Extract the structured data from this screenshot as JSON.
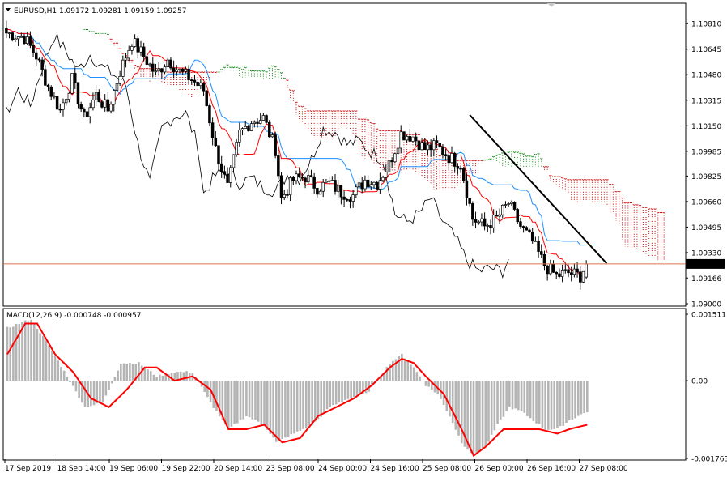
{
  "window": {
    "symbol_line": "EURUSD,H1  1.09172 1.09281 1.09159 1.09257",
    "macd_line": "MACD(12,26,9) -0.000748 -0.000957",
    "current_price_label": "1.09257"
  },
  "colors": {
    "background": "#ffffff",
    "candles": "#000000",
    "tenkan": "#ff0000",
    "kijun": "#1e90ff",
    "chikou": "#000000",
    "kumo_bear": "#cc0000",
    "kumo_bull": "#008000",
    "trendline": "#000000",
    "price_line": "#e07050",
    "macd_hist": "#b4b4b4",
    "macd_signal": "#ff0000",
    "grid_frame": "#000000"
  },
  "chart_data": [
    {
      "type": "candlestick",
      "panel": "price",
      "title": "EURUSD,H1",
      "indicators": [
        "Ichimoku Kinko Hyo",
        "trendline",
        "current price line"
      ],
      "ylim": [
        1.09,
        1.109
      ],
      "y_ticks": [
        "1.10810",
        "1.10645",
        "1.10480",
        "1.10315",
        "1.10150",
        "1.09985",
        "1.09825",
        "1.09660",
        "1.09495",
        "1.09330",
        "1.09166",
        "1.09000"
      ],
      "y_tick_values": [
        1.1081,
        1.10645,
        1.1048,
        1.10315,
        1.1015,
        1.09985,
        1.09825,
        1.0966,
        1.09495,
        1.0933,
        1.09166,
        1.09
      ],
      "current_price": 1.09257,
      "last_bar": {
        "open": 1.09172,
        "high": 1.09281,
        "low": 1.09159,
        "close": 1.09257
      },
      "x_labels": [
        "17 Sep 2019",
        "18 Sep 14:00",
        "19 Sep 06:00",
        "19 Sep 22:00",
        "20 Sep 14:00",
        "23 Sep 08:00",
        "24 Sep 00:00",
        "24 Sep 16:00",
        "25 Sep 08:00",
        "26 Sep 00:00",
        "26 Sep 16:00",
        "27 Sep 08:00"
      ],
      "close_path": [
        [
          0,
          1.1075
        ],
        [
          6,
          1.1072
        ],
        [
          10,
          1.106
        ],
        [
          14,
          1.104
        ],
        [
          18,
          1.1025
        ],
        [
          22,
          1.1045
        ],
        [
          26,
          1.102
        ],
        [
          30,
          1.1035
        ],
        [
          34,
          1.1025
        ],
        [
          38,
          1.105
        ],
        [
          42,
          1.107
        ],
        [
          46,
          1.106
        ],
        [
          50,
          1.1048
        ],
        [
          54,
          1.1058
        ],
        [
          58,
          1.105
        ],
        [
          62,
          1.1045
        ],
        [
          66,
          1.1038
        ],
        [
          70,
          1.1
        ],
        [
          74,
          1.0975
        ],
        [
          78,
          1.101
        ],
        [
          82,
          1.1018
        ],
        [
          86,
          1.102
        ],
        [
          90,
          1.1
        ],
        [
          92,
          1.0968
        ],
        [
          96,
          1.098
        ],
        [
          100,
          1.0982
        ],
        [
          104,
          1.0975
        ],
        [
          108,
          1.0978
        ],
        [
          112,
          1.0972
        ],
        [
          116,
          1.097
        ],
        [
          120,
          1.098
        ],
        [
          124,
          1.0978
        ],
        [
          128,
          1.099
        ],
        [
          132,
          1.101
        ],
        [
          136,
          1.1008
        ],
        [
          140,
          1.1
        ],
        [
          144,
          1.1002
        ],
        [
          148,
          1.0995
        ],
        [
          152,
          1.099
        ],
        [
          156,
          1.0955
        ],
        [
          160,
          1.095
        ],
        [
          164,
          1.0955
        ],
        [
          168,
          1.0965
        ],
        [
          172,
          1.095
        ],
        [
          176,
          1.094
        ],
        [
          180,
          1.0925
        ],
        [
          184,
          1.0918
        ],
        [
          188,
          1.092
        ],
        [
          192,
          1.0918
        ],
        [
          194,
          1.0926
        ]
      ],
      "total_bars": 195,
      "trendline": {
        "from": [
          155,
          1.1022
        ],
        "to": [
          190,
          1.0926
        ]
      }
    },
    {
      "type": "bar",
      "panel": "macd",
      "title": "MACD(12,26,9)",
      "main_value": -0.000748,
      "signal_value": -0.000957,
      "ylim": [
        -0.001763,
        0.001511
      ],
      "y_ticks": [
        "0.001511",
        "0.00",
        "-0.001763"
      ],
      "y_tick_values": [
        0.001511,
        0.0,
        -0.001763
      ],
      "hist_path": [
        [
          0,
          0.0012
        ],
        [
          8,
          0.0014
        ],
        [
          14,
          0.0008
        ],
        [
          20,
          0.0001
        ],
        [
          26,
          -0.0006
        ],
        [
          32,
          -0.0005
        ],
        [
          38,
          0.0004
        ],
        [
          44,
          0.0004
        ],
        [
          50,
          0.0001
        ],
        [
          56,
          0.0002
        ],
        [
          62,
          0.0002
        ],
        [
          68,
          -0.0005
        ],
        [
          74,
          -0.0011
        ],
        [
          80,
          -0.0008
        ],
        [
          86,
          -0.001
        ],
        [
          90,
          -0.0014
        ],
        [
          96,
          -0.0012
        ],
        [
          102,
          -0.001
        ],
        [
          108,
          -0.0006
        ],
        [
          114,
          -0.0004
        ],
        [
          120,
          -0.0003
        ],
        [
          124,
          0.0
        ],
        [
          128,
          0.0004
        ],
        [
          132,
          0.0006
        ],
        [
          136,
          0.0003
        ],
        [
          140,
          -0.0001
        ],
        [
          144,
          -0.0003
        ],
        [
          148,
          -0.0008
        ],
        [
          152,
          -0.0014
        ],
        [
          156,
          -0.0017
        ],
        [
          160,
          -0.0015
        ],
        [
          164,
          -0.001
        ],
        [
          168,
          -0.0006
        ],
        [
          172,
          -0.0007
        ],
        [
          176,
          -0.0009
        ],
        [
          180,
          -0.0011
        ],
        [
          184,
          -0.0011
        ],
        [
          188,
          -0.0009
        ],
        [
          194,
          -0.0007
        ]
      ],
      "signal_path": [
        [
          0,
          0.0006
        ],
        [
          6,
          0.0013
        ],
        [
          10,
          0.0013
        ],
        [
          16,
          0.0006
        ],
        [
          22,
          0.0002
        ],
        [
          28,
          -0.0004
        ],
        [
          34,
          -0.0006
        ],
        [
          40,
          -0.0002
        ],
        [
          46,
          0.0003
        ],
        [
          50,
          0.0003
        ],
        [
          56,
          -0.0
        ],
        [
          62,
          0.0001
        ],
        [
          68,
          -0.0002
        ],
        [
          74,
          -0.0011
        ],
        [
          80,
          -0.0011
        ],
        [
          86,
          -0.001
        ],
        [
          92,
          -0.0014
        ],
        [
          98,
          -0.0013
        ],
        [
          104,
          -0.0008
        ],
        [
          110,
          -0.0006
        ],
        [
          116,
          -0.0004
        ],
        [
          122,
          -0.0001
        ],
        [
          128,
          0.0003
        ],
        [
          132,
          0.0005
        ],
        [
          136,
          0.0004
        ],
        [
          140,
          0.0001
        ],
        [
          146,
          -0.0003
        ],
        [
          152,
          -0.0011
        ],
        [
          156,
          -0.0017
        ],
        [
          160,
          -0.0015
        ],
        [
          166,
          -0.0011
        ],
        [
          172,
          -0.0011
        ],
        [
          178,
          -0.0011
        ],
        [
          184,
          -0.0012
        ],
        [
          188,
          -0.0011
        ],
        [
          194,
          -0.001
        ]
      ]
    }
  ]
}
